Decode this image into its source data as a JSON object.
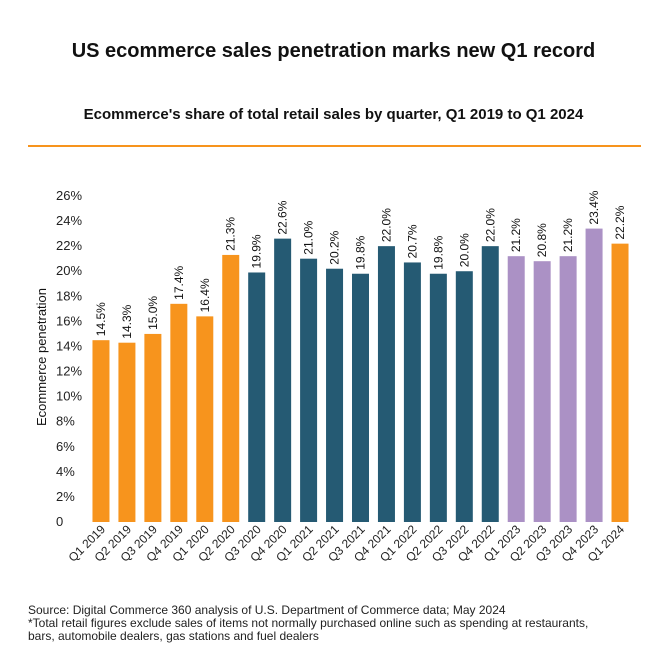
{
  "chart_data": {
    "type": "bar",
    "title": "US ecommerce sales penetration marks new Q1 record",
    "subtitle": "Ecommerce's share of total retail sales by quarter, Q1 2019 to Q1 2024",
    "xlabel": "",
    "ylabel": "Ecommerce penetration",
    "ylim": [
      0,
      26
    ],
    "yticks": [
      "0",
      "2%",
      "4%",
      "6%",
      "8%",
      "10%",
      "12%",
      "14%",
      "16%",
      "18%",
      "20%",
      "22%",
      "24%",
      "26%"
    ],
    "grid": false,
    "categories": [
      "Q1 2019",
      "Q2 2019",
      "Q3 2019",
      "Q4 2019",
      "Q1 2020",
      "Q2 2020",
      "Q3 2020",
      "Q4 2020",
      "Q1 2021",
      "Q2 2021",
      "Q3 2021",
      "Q4 2021",
      "Q1 2022",
      "Q2 2022",
      "Q3 2022",
      "Q4 2022",
      "Q1 2023",
      "Q2 2023",
      "Q3 2023",
      "Q4 2023",
      "Q1 2024"
    ],
    "values": [
      14.5,
      14.3,
      15.0,
      17.4,
      16.4,
      21.3,
      19.9,
      22.6,
      21.0,
      20.2,
      19.8,
      22.0,
      20.7,
      19.8,
      20.0,
      22.0,
      21.2,
      20.8,
      21.2,
      23.4,
      22.2
    ],
    "labels": [
      "14.5%",
      "14.3%",
      "15.0%",
      "17.4%",
      "16.4%",
      "21.3%",
      "19.9%",
      "22.6%",
      "21.0%",
      "20.2%",
      "19.8%",
      "22.0%",
      "20.7%",
      "19.8%",
      "20.0%",
      "22.0%",
      "21.2%",
      "20.8%",
      "21.2%",
      "23.4%",
      "22.2%"
    ],
    "bar_colors": [
      "#f7941d",
      "#f7941d",
      "#f7941d",
      "#f7941d",
      "#f7941d",
      "#f7941d",
      "#255a73",
      "#255a73",
      "#255a73",
      "#255a73",
      "#255a73",
      "#255a73",
      "#255a73",
      "#255a73",
      "#255a73",
      "#255a73",
      "#ab91c5",
      "#ab91c5",
      "#ab91c5",
      "#ab91c5",
      "#f7941d"
    ]
  },
  "colors": {
    "accent_rule": "#f7941d"
  },
  "footer": {
    "source": "Source: Digital Commerce 360 analysis of U.S. Department of Commerce data; May 2024",
    "note_line1": "*Total retail figures exclude sales of items not normally purchased online such as spending at restaurants,",
    "note_line2": "bars, automobile dealers, gas stations and fuel dealers"
  }
}
